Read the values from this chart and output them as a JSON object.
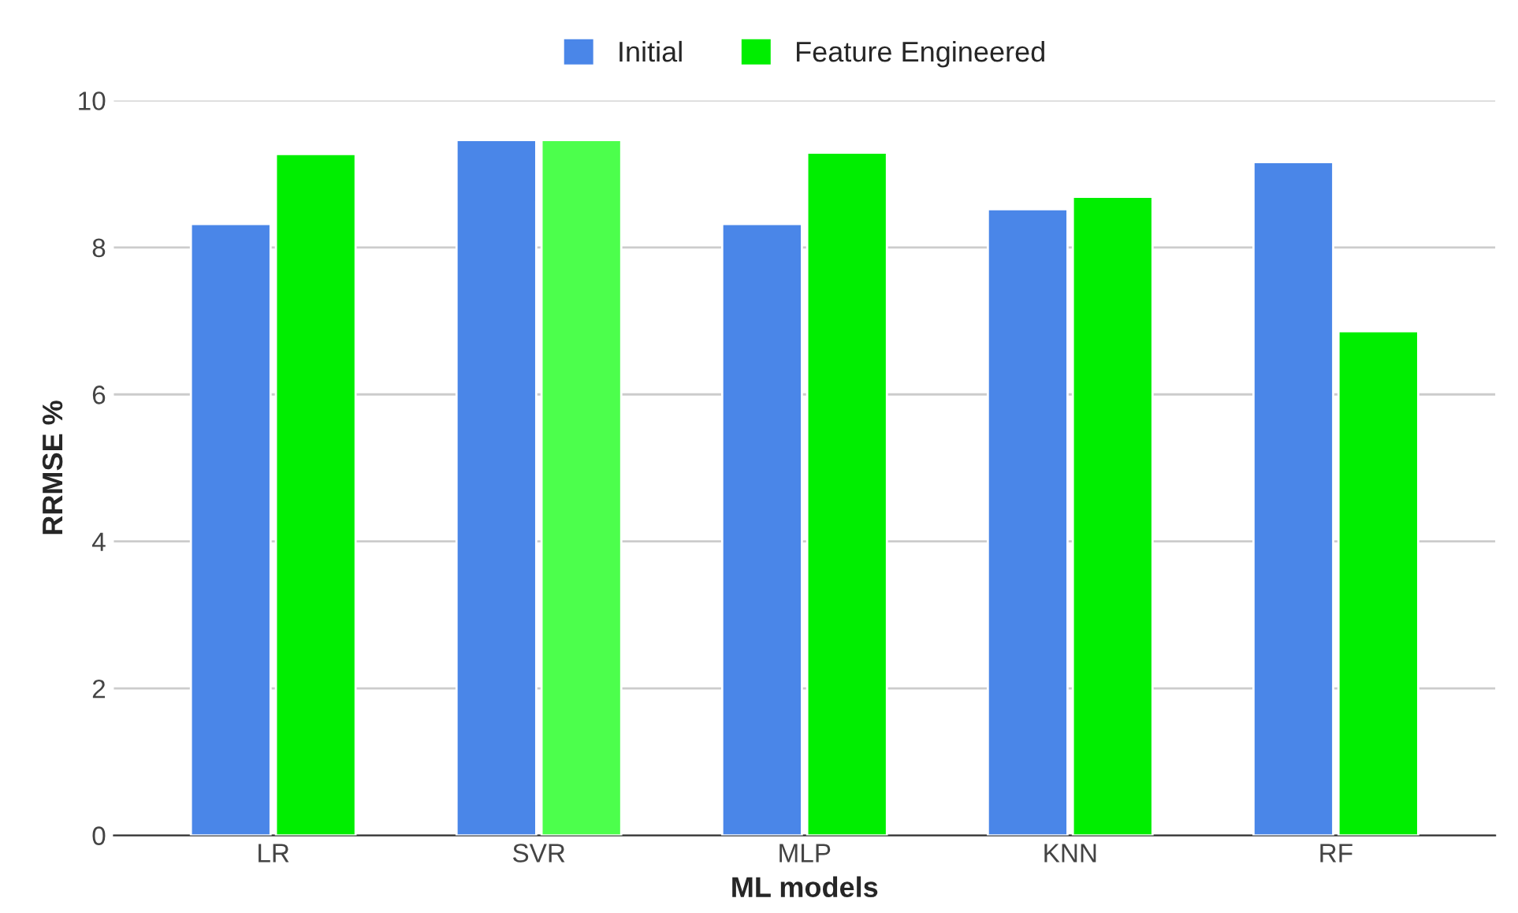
{
  "chart_data": {
    "type": "bar",
    "xlabel": "ML models",
    "ylabel": "RRMSE %",
    "categories": [
      "LR",
      "SVR",
      "MLP",
      "KNN",
      "RF"
    ],
    "series": [
      {
        "name": "Initial",
        "color": "#4a86e8",
        "values": [
          8.32,
          9.46,
          8.32,
          8.52,
          9.16
        ]
      },
      {
        "name": "Feature Engineered",
        "color": "#00ee00",
        "colors": [
          "#00ee00",
          "#4cff4c",
          "#00ee00",
          "#00ee00",
          "#00ee00"
        ],
        "values": [
          9.27,
          9.46,
          9.29,
          8.69,
          6.86
        ]
      }
    ],
    "ylim": [
      0,
      10
    ],
    "yticks": [
      0,
      2,
      4,
      6,
      8,
      10
    ],
    "grid": "y",
    "legend": "top"
  }
}
